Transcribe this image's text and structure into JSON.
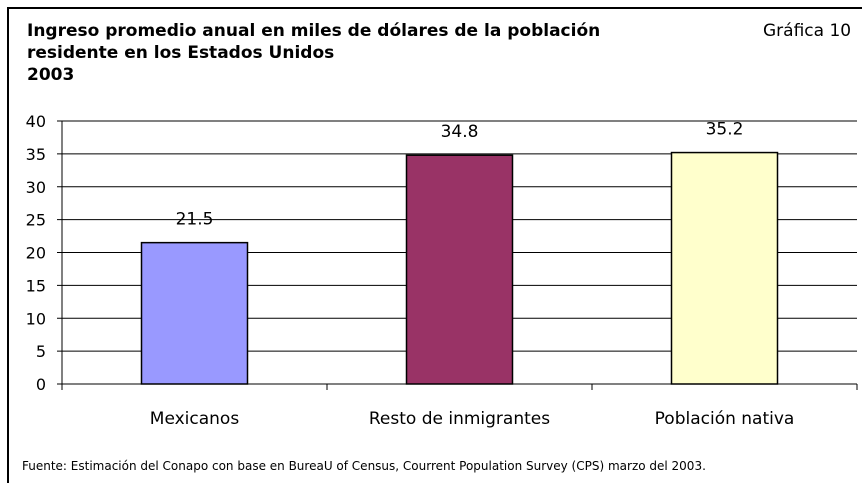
{
  "header": {
    "title_lines": [
      "Ingreso promedio anual en miles de dólares de la población",
      "residente en los Estados Unidos",
      "2003"
    ],
    "figure_label": "Gráfica 10"
  },
  "chart_data": {
    "type": "bar",
    "categories": [
      "Mexicanos",
      "Resto de inmigrantes",
      "Población nativa"
    ],
    "values": [
      21.5,
      34.8,
      35.2
    ],
    "value_labels": [
      "21.5",
      "34.8",
      "35.2"
    ],
    "yticks": [
      0,
      5,
      10,
      15,
      20,
      25,
      30,
      35,
      40
    ],
    "ylim": [
      0,
      40
    ],
    "grid": true,
    "legend": "none",
    "bar_colors": [
      "#9999ff",
      "#993366",
      "#ffffcc"
    ],
    "xlabel": "",
    "ylabel": ""
  },
  "footer": {
    "source": "Fuente: Estimación del Conapo con base en BureaU of Census, Courrent Population Survey (CPS) marzo del 2003."
  }
}
